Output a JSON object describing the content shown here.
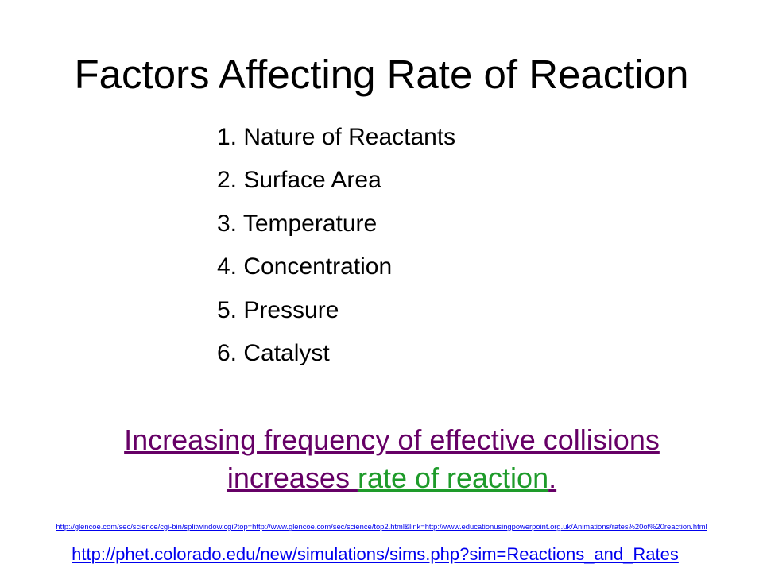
{
  "slide": {
    "title": "Factors Affecting Rate of Reaction",
    "factors": [
      "1. Nature of Reactants",
      "2. Surface Area",
      "3. Temperature",
      "4. Concentration",
      "5. Pressure",
      "6. Catalyst"
    ],
    "statement": {
      "line1": "Increasing frequency of effective collisions",
      "line2_part1": "increases ",
      "line2_part2": "rate of reaction",
      "line2_part3": "."
    },
    "links": {
      "glencoe": "http://glencoe.com/sec/science/cgi-bin/splitwindow.cgi?top=http://www.glencoe.com/sec/science/top2.html&link=http://www.educationusingpowerpoint.org.uk/Animations/rates%20of%20reaction.html",
      "phet": "http://phet.colorado.edu/new/simulations/sims.php?sim=Reactions_and_Rates"
    }
  },
  "colors": {
    "purple_link": "#660066",
    "green_link": "#1e9b2a",
    "blue_link": "#0000ee"
  }
}
